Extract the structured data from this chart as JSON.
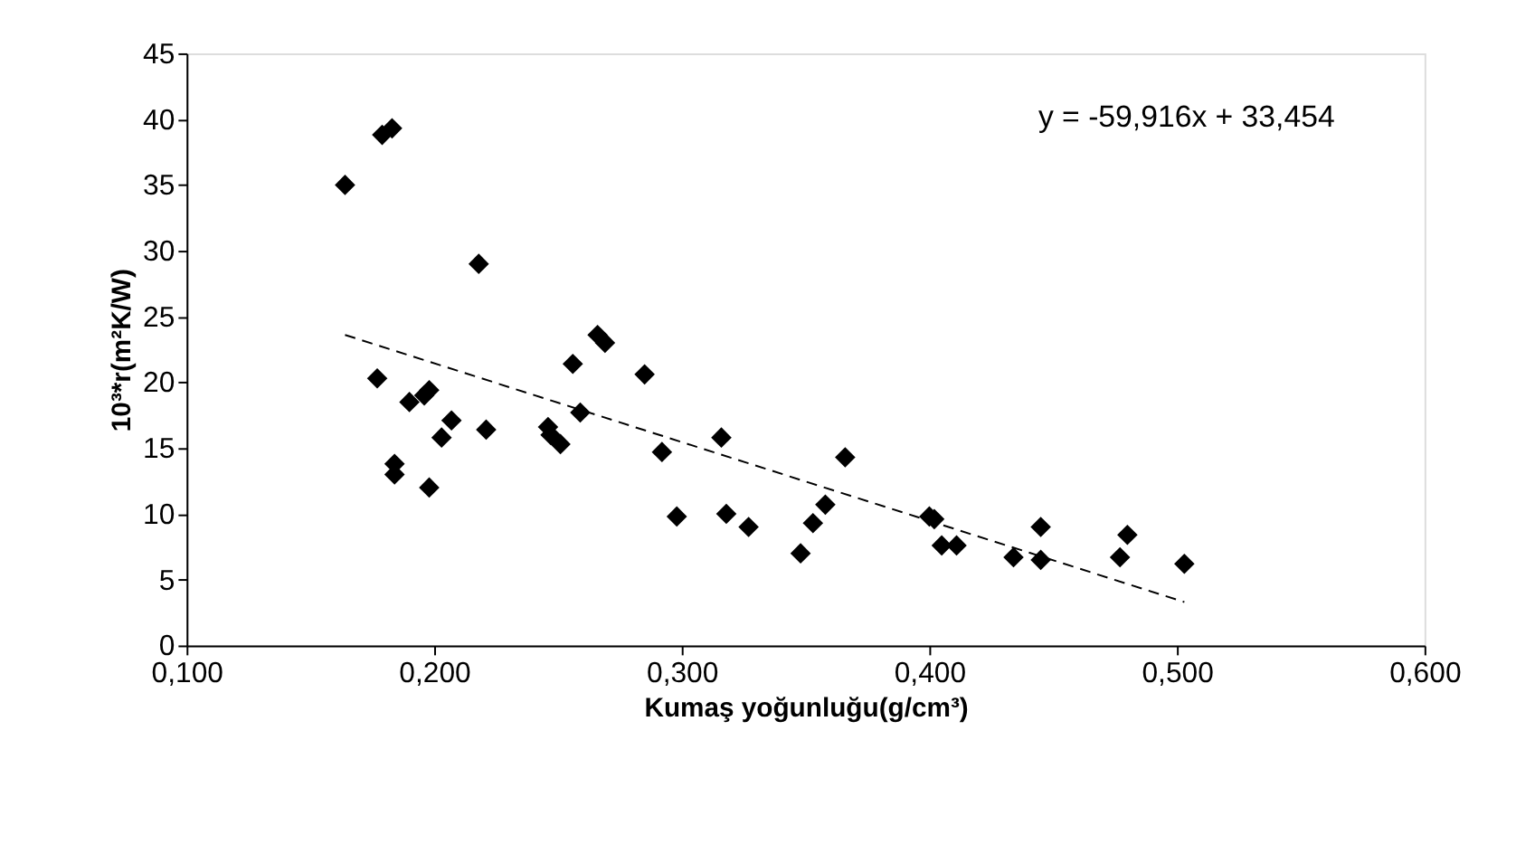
{
  "chart_data": {
    "type": "scatter",
    "xlabel": "Kumaş yoğunluğu(g/cm³)",
    "ylabel": "10³*r(m²K/W)",
    "annotations": [
      "y = -59,916x + 33,454"
    ],
    "xlim": [
      0.1,
      0.6
    ],
    "ylim": [
      0,
      45
    ],
    "grid": false,
    "marker": "diamond",
    "xticks": [
      {
        "value": 0.1,
        "label": "0,100"
      },
      {
        "value": 0.2,
        "label": "0,200"
      },
      {
        "value": 0.3,
        "label": "0,300"
      },
      {
        "value": 0.4,
        "label": "0,400"
      },
      {
        "value": 0.5,
        "label": "0,500"
      },
      {
        "value": 0.6,
        "label": "0,600"
      }
    ],
    "yticks": [
      0,
      5,
      10,
      15,
      20,
      25,
      30,
      35,
      40,
      45
    ],
    "series": [
      {
        "color": "#000000",
        "x": [
          0.164,
          0.179,
          0.183,
          0.177,
          0.184,
          0.184,
          0.19,
          0.196,
          0.198,
          0.198,
          0.203,
          0.207,
          0.218,
          0.221,
          0.246,
          0.247,
          0.251,
          0.256,
          0.259,
          0.266,
          0.269,
          0.285,
          0.292,
          0.298,
          0.316,
          0.318,
          0.327,
          0.348,
          0.353,
          0.358,
          0.366,
          0.4,
          0.402,
          0.405,
          0.411,
          0.434,
          0.445,
          0.445,
          0.477,
          0.48,
          0.503
        ],
        "values": [
          35,
          38.8,
          39.3,
          20.3,
          13.8,
          13,
          18.5,
          19,
          19.4,
          12,
          15.8,
          17.1,
          29,
          16.4,
          16.6,
          16,
          15.3,
          21.4,
          17.7,
          23.6,
          23,
          20.6,
          14.7,
          9.8,
          15.8,
          10,
          9,
          7,
          9.3,
          10.7,
          14.3,
          9.8,
          9.6,
          7.6,
          7.6,
          6.7,
          9,
          6.5,
          6.7,
          8.4,
          6.2
        ]
      },
      {
        "type": "line",
        "color": "#000000",
        "line_style": "dashed",
        "marker": "none",
        "x": [
          0.164,
          0.503
        ],
        "values": [
          23.6,
          3.3
        ]
      }
    ]
  }
}
